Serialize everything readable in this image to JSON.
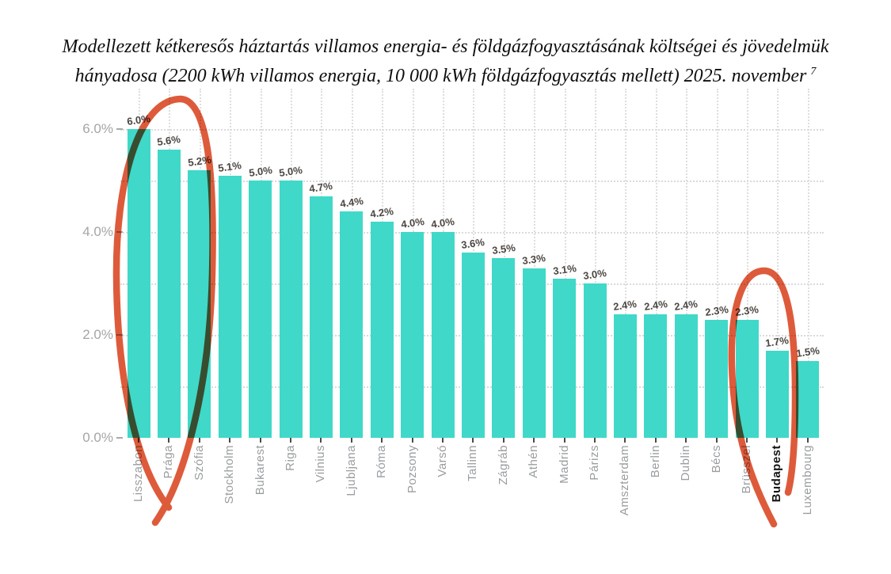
{
  "title": {
    "line1": "Modellezett kétkeresős háztartás villamos energia- és földgázfogyasztásának költségei és jövedelmük",
    "line2": "hányadosa (2200 kWh villamos energia, 10 000 kWh földgázfogyasztás mellett) 2025. november",
    "footnote_ref": "7"
  },
  "chart_data": {
    "type": "bar",
    "categories": [
      "Lisszabon",
      "Prága",
      "Szófia",
      "Stockholm",
      "Bukarest",
      "Riga",
      "Vilnius",
      "Ljubljana",
      "Róma",
      "Pozsony",
      "Varsó",
      "Tallinn",
      "Zágráb",
      "Athén",
      "Madrid",
      "Párizs",
      "Amszterdam",
      "Berlin",
      "Dublin",
      "Bécs",
      "Brüsszel",
      "Budapest",
      "Luxembourg"
    ],
    "values": [
      6.0,
      5.6,
      5.2,
      5.1,
      5.0,
      5.0,
      4.7,
      4.4,
      4.2,
      4.0,
      4.0,
      3.6,
      3.5,
      3.3,
      3.1,
      3.0,
      2.4,
      2.4,
      2.4,
      2.3,
      2.3,
      1.7,
      1.5
    ],
    "value_labels": [
      "6.0%",
      "5.6%",
      "5.2%",
      "5.1%",
      "5.0%",
      "5.0%",
      "4.7%",
      "4.4%",
      "4.2%",
      "4.0%",
      "4.0%",
      "3.6%",
      "3.5%",
      "3.3%",
      "3.1%",
      "3.0%",
      "2.4%",
      "2.4%",
      "2.4%",
      "2.3%",
      "2.3%",
      "1.7%",
      "1.5%"
    ],
    "ytick_values": [
      0,
      2,
      4,
      6
    ],
    "ytick_labels": [
      "0.0%",
      "2.0%",
      "4.0%",
      "6.0%"
    ],
    "ylim": [
      0,
      6.5
    ],
    "grid": true,
    "xlabel": "",
    "ylabel": "",
    "highlighted_category": "Budapest",
    "bar_color": "#40d8c8",
    "annotation_color": "#dd5b3b",
    "annotations": [
      {
        "shape": "hand-drawn-ellipse",
        "around": [
          "Lisszabon",
          "Prága",
          "Szófia"
        ]
      },
      {
        "shape": "hand-drawn-ellipse",
        "around": [
          "Budapest"
        ]
      }
    ]
  }
}
